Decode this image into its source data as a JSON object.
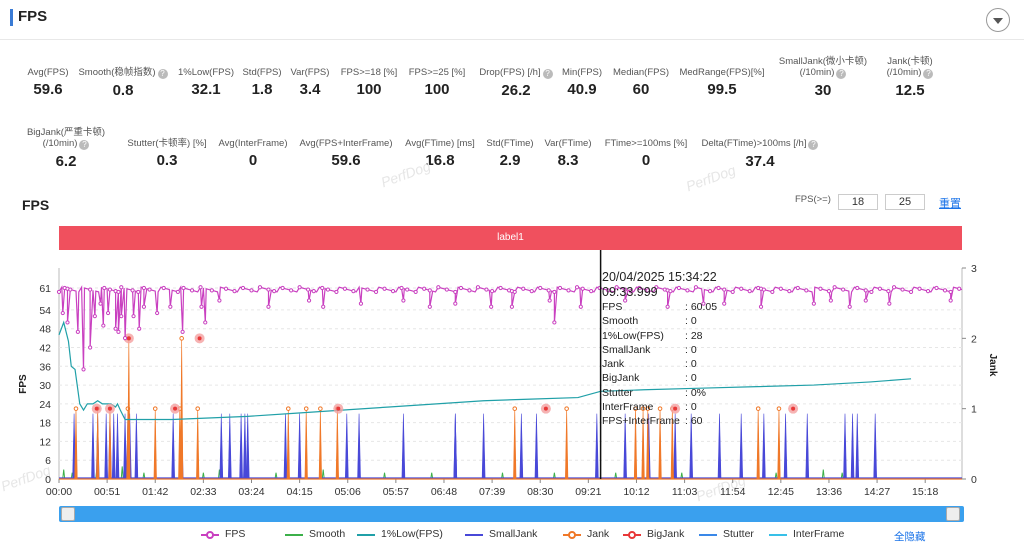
{
  "header": {
    "title": "FPS"
  },
  "metrics_row1": [
    {
      "label": "Avg(FPS)",
      "value": "59.6",
      "help": false
    },
    {
      "label": "Smooth(稳帧指数)",
      "value": "0.8",
      "help": true
    },
    {
      "label": "1%Low(FPS)",
      "value": "32.1",
      "help": false
    },
    {
      "label": "Std(FPS)",
      "value": "1.8",
      "help": false
    },
    {
      "label": "Var(FPS)",
      "value": "3.4",
      "help": false
    },
    {
      "label": "FPS>=18 [%]",
      "value": "100",
      "help": false
    },
    {
      "label": "FPS>=25 [%]",
      "value": "100",
      "help": false
    },
    {
      "label": "Drop(FPS) [/h]",
      "value": "26.2",
      "help": true
    },
    {
      "label": "Min(FPS)",
      "value": "40.9",
      "help": false
    },
    {
      "label": "Median(FPS)",
      "value": "60",
      "help": false
    },
    {
      "label": "MedRange(FPS)[%]",
      "value": "99.5",
      "help": false
    },
    {
      "label": "SmallJank(微小卡顿)\n(/10min)",
      "value": "30",
      "help": true
    },
    {
      "label": "Jank(卡顿)\n(/10min)",
      "value": "12.5",
      "help": true
    }
  ],
  "metrics_row2": [
    {
      "label": "BigJank(严重卡顿)\n(/10min)",
      "value": "6.2",
      "help": true
    },
    {
      "label": "Stutter(卡顿率) [%]",
      "value": "0.3",
      "help": false
    },
    {
      "label": "Avg(InterFrame)",
      "value": "0",
      "help": false
    },
    {
      "label": "Avg(FPS+InterFrame)",
      "value": "59.6",
      "help": false
    },
    {
      "label": "Avg(FTime) [ms]",
      "value": "16.8",
      "help": false
    },
    {
      "label": "Std(FTime)",
      "value": "2.9",
      "help": false
    },
    {
      "label": "Var(FTime)",
      "value": "8.3",
      "help": false
    },
    {
      "label": "FTime>=100ms [%]",
      "value": "0",
      "help": false
    },
    {
      "label": "Delta(FTime)>100ms [/h]",
      "value": "37.4",
      "help": true
    }
  ],
  "watermark": "PerfDog",
  "chart_title": "FPS",
  "fps_threshold": {
    "label": "FPS(>=)",
    "value1": "18",
    "value2": "25",
    "reset": "重置"
  },
  "label_bar": "label1",
  "tooltip": {
    "time": "20/04/2025 15:34:22",
    "sub": "09:33.999",
    "rows": [
      {
        "k": "FPS",
        "v": ": 60.05"
      },
      {
        "k": "Smooth",
        "v": ": 0"
      },
      {
        "k": "1%Low(FPS)",
        "v": ": 28"
      },
      {
        "k": "SmallJank",
        "v": ": 0"
      },
      {
        "k": "Jank",
        "v": ": 0"
      },
      {
        "k": "BigJank",
        "v": ": 0"
      },
      {
        "k": "Stutter",
        "v": ": 0%"
      },
      {
        "k": "InterFrame",
        "v": ": 0"
      },
      {
        "k": "FPS+InterFrame",
        "v": ": 60"
      }
    ]
  },
  "legend_hide_all": "全隐藏",
  "colors": {
    "fps": "#c940c0",
    "smooth": "#3cb04a",
    "low": "#20a0a8",
    "smalljank": "#4848d8",
    "jank": "#f07828",
    "bigjank": "#e83838",
    "stutter": "#3a88e8",
    "interframe": "#38c0e8"
  },
  "chart_data": {
    "type": "line",
    "xlabel": "",
    "ylabel": "FPS",
    "y2label": "Jank",
    "ylim": [
      0,
      61
    ],
    "y_ticks": [
      0,
      6,
      12,
      18,
      24,
      30,
      36,
      42,
      48,
      54,
      61
    ],
    "y2lim": [
      0,
      3
    ],
    "y2_ticks": [
      0,
      1,
      2,
      3
    ],
    "x_ticks": [
      "00:00",
      "00:51",
      "01:42",
      "02:33",
      "03:24",
      "04:15",
      "05:06",
      "05:57",
      "06:48",
      "07:39",
      "08:30",
      "09:21",
      "10:12",
      "11:03",
      "11:54",
      "12:45",
      "13:36",
      "14:27",
      "15:18"
    ],
    "x_range_seconds": [
      0,
      957
    ],
    "cursor_seconds": 574,
    "grid": true,
    "legend_position": "bottom",
    "series": [
      {
        "name": "FPS",
        "type": "line-marker",
        "axis": "left",
        "baseline": 60.5,
        "dips": [
          [
            4,
            53
          ],
          [
            9,
            50
          ],
          [
            20,
            47
          ],
          [
            26,
            35
          ],
          [
            33,
            42
          ],
          [
            38,
            52
          ],
          [
            44,
            56
          ],
          [
            47,
            49
          ],
          [
            52,
            53
          ],
          [
            60,
            48
          ],
          [
            63,
            47
          ],
          [
            66,
            52
          ],
          [
            70,
            45
          ],
          [
            79,
            52
          ],
          [
            85,
            48
          ],
          [
            90,
            55
          ],
          [
            104,
            53
          ],
          [
            118,
            55
          ],
          [
            131,
            47
          ],
          [
            151,
            55
          ],
          [
            155,
            50
          ],
          [
            170,
            57
          ],
          [
            222,
            55
          ],
          [
            265,
            57
          ],
          [
            280,
            55
          ],
          [
            320,
            56
          ],
          [
            365,
            57
          ],
          [
            393,
            55
          ],
          [
            420,
            56
          ],
          [
            458,
            55
          ],
          [
            480,
            55
          ],
          [
            520,
            57
          ],
          [
            525,
            50
          ],
          [
            553,
            55
          ],
          [
            600,
            57
          ],
          [
            645,
            55
          ],
          [
            683,
            56
          ],
          [
            705,
            56
          ],
          [
            744,
            55
          ],
          [
            800,
            56
          ],
          [
            818,
            57
          ],
          [
            838,
            55
          ],
          [
            855,
            57
          ],
          [
            880,
            56
          ],
          [
            945,
            57
          ]
        ]
      },
      {
        "name": "Smooth",
        "type": "line",
        "axis": "left",
        "note": "low-level noise spikes",
        "spikes": [
          [
            5,
            3
          ],
          [
            14,
            2
          ],
          [
            40,
            3
          ],
          [
            62,
            2
          ],
          [
            67,
            4
          ],
          [
            90,
            2
          ],
          [
            130,
            3
          ],
          [
            153,
            2
          ],
          [
            170,
            3
          ],
          [
            230,
            2
          ],
          [
            280,
            3
          ],
          [
            345,
            2
          ],
          [
            395,
            2
          ],
          [
            470,
            2
          ],
          [
            525,
            2
          ],
          [
            590,
            2
          ],
          [
            660,
            2
          ],
          [
            700,
            2
          ],
          [
            760,
            2
          ],
          [
            810,
            3
          ],
          [
            830,
            2
          ]
        ]
      },
      {
        "name": "1%Low(FPS)",
        "type": "line",
        "axis": "left",
        "points": [
          [
            0,
            46
          ],
          [
            5,
            50
          ],
          [
            10,
            44
          ],
          [
            13,
            36
          ],
          [
            17,
            35
          ],
          [
            22,
            24
          ],
          [
            26,
            22
          ],
          [
            30,
            24
          ],
          [
            32,
            24
          ],
          [
            36,
            24
          ],
          [
            41,
            25
          ],
          [
            46,
            24
          ],
          [
            55,
            24
          ],
          [
            60,
            23
          ],
          [
            62,
            24
          ],
          [
            65,
            22
          ],
          [
            70,
            19
          ],
          [
            90,
            19
          ],
          [
            120,
            19
          ],
          [
            200,
            20
          ],
          [
            250,
            21
          ],
          [
            300,
            22
          ],
          [
            350,
            23
          ],
          [
            400,
            24
          ],
          [
            450,
            25
          ],
          [
            500,
            25.5
          ],
          [
            550,
            26
          ],
          [
            574,
            28
          ],
          [
            620,
            28.5
          ],
          [
            680,
            29
          ],
          [
            740,
            29.5
          ],
          [
            800,
            30
          ],
          [
            860,
            31
          ],
          [
            903,
            32
          ]
        ]
      },
      {
        "name": "SmallJank",
        "type": "spikes",
        "axis": "right",
        "events": [
          16,
          36,
          41,
          50,
          54,
          58,
          62,
          70,
          73,
          75,
          82,
          121,
          130,
          172,
          181,
          193,
          197,
          200,
          240,
          255,
          305,
          318,
          365,
          420,
          420,
          450,
          490,
          506,
          570,
          600,
          625,
          653,
          670,
          700,
          723,
          747,
          770,
          793,
          833,
          841,
          846,
          865
        ]
      },
      {
        "name": "Jank",
        "type": "spikes",
        "axis": "right",
        "events": [
          [
            18,
            1
          ],
          [
            41,
            1
          ],
          [
            54,
            1
          ],
          [
            73,
            1
          ],
          [
            74,
            2
          ],
          [
            102,
            1
          ],
          [
            128,
            1
          ],
          [
            130,
            2
          ],
          [
            147,
            1
          ],
          [
            243,
            1
          ],
          [
            262,
            1
          ],
          [
            277,
            1
          ],
          [
            295,
            1
          ],
          [
            483,
            1
          ],
          [
            538,
            1
          ],
          [
            611,
            1
          ],
          [
            619,
            1
          ],
          [
            624,
            1
          ],
          [
            637,
            1
          ],
          [
            650,
            1
          ],
          [
            741,
            1
          ],
          [
            763,
            1
          ]
        ]
      },
      {
        "name": "BigJank",
        "type": "markers",
        "axis": "right",
        "events": [
          [
            40,
            1
          ],
          [
            54,
            1
          ],
          [
            74,
            2
          ],
          [
            123,
            1
          ],
          [
            149,
            2
          ],
          [
            296,
            1
          ],
          [
            516,
            1
          ],
          [
            653,
            1
          ],
          [
            778,
            1
          ]
        ]
      },
      {
        "name": "Stutter",
        "type": "line",
        "axis": "right",
        "values": []
      },
      {
        "name": "InterFrame",
        "type": "line",
        "axis": "right",
        "values": []
      }
    ]
  }
}
